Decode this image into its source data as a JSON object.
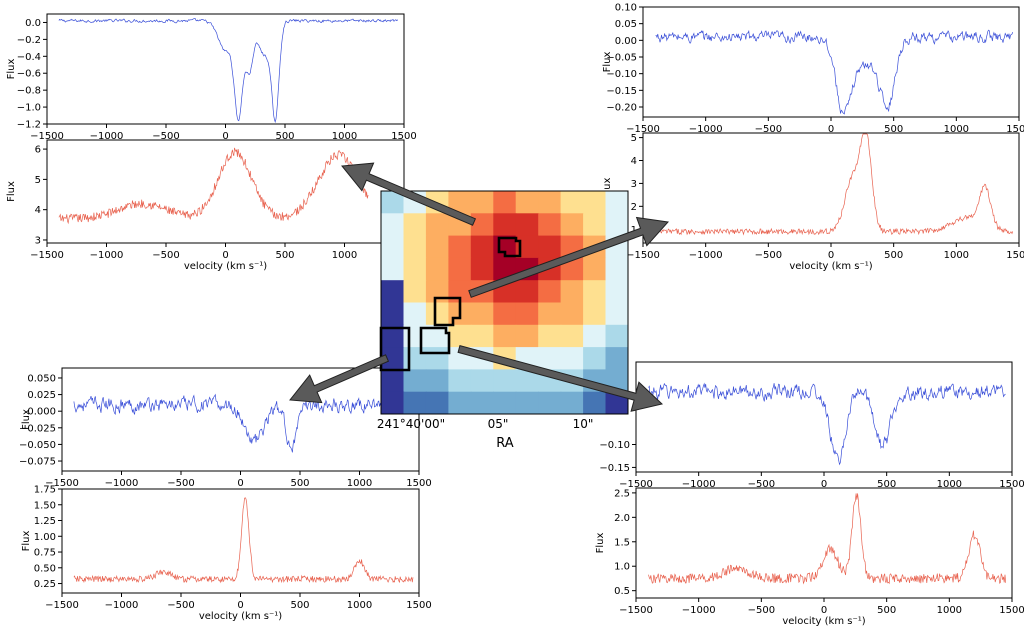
{
  "colors": {
    "absorption": "#3a4fd8",
    "emission": "#e8624f",
    "arrow": "#5a5a5a",
    "box": "#000000"
  },
  "map": {
    "xlabel": "RA",
    "ticks": [
      "241°40'00\"",
      "05\"",
      "10\""
    ]
  },
  "chart_data": [
    {
      "id": "tl-top",
      "type": "line",
      "xlabel": "",
      "ylabel": "Flux",
      "xlim": [
        -1500,
        1500
      ],
      "ylim": [
        -1.2,
        0.1
      ],
      "xticks": [
        -1500,
        -1000,
        -500,
        0,
        500,
        1000,
        1500
      ],
      "yticks": [
        -1.2,
        -1.0,
        -0.8,
        -0.6,
        -0.4,
        -0.2,
        0.0
      ],
      "ytickfmt": 1,
      "color": "absorption",
      "x_range": [
        -1400,
        1450
      ],
      "features": {
        "baseline": 0.02,
        "noise": 0.02,
        "dips": [
          {
            "x": 0,
            "d": 0.35,
            "w": 60
          },
          {
            "x": 110,
            "d": 1.1,
            "w": 35
          },
          {
            "x": 200,
            "d": 0.55,
            "w": 30
          },
          {
            "x": 420,
            "d": 1.05,
            "w": 30
          },
          {
            "x": 330,
            "d": 0.4,
            "w": 60
          }
        ]
      }
    },
    {
      "id": "tl-bot",
      "type": "line",
      "xlabel": "velocity (km s⁻¹)",
      "ylabel": "Flux",
      "xlim": [
        -1500,
        1500
      ],
      "ylim": [
        2.9,
        6.3
      ],
      "xticks": [
        -1500,
        -1000,
        -500,
        0,
        500,
        1000,
        1500
      ],
      "yticks": [
        3,
        4,
        5,
        6
      ],
      "ytickfmt": 0,
      "color": "emission",
      "x_range": [
        -1400,
        1200
      ],
      "features": {
        "baseline": 3.7,
        "noise": 0.15,
        "peaks": [
          {
            "x": 80,
            "h": 2.2,
            "w": 140
          },
          {
            "x": 950,
            "h": 2.1,
            "w": 170
          },
          {
            "x": -700,
            "h": 0.5,
            "w": 200
          }
        ]
      }
    },
    {
      "id": "tr-top",
      "type": "line",
      "xlabel": "",
      "ylabel": "Flux",
      "xlim": [
        -1500,
        1500
      ],
      "ylim": [
        -0.23,
        0.1
      ],
      "xticks": [
        -1500,
        -1000,
        -500,
        0,
        500,
        1000,
        1500
      ],
      "yticks": [
        -0.2,
        -0.15,
        -0.1,
        -0.05,
        0.0,
        0.05,
        0.1
      ],
      "ytickfmt": 2,
      "color": "absorption",
      "x_range": [
        -1400,
        1450
      ],
      "features": {
        "baseline": 0.01,
        "noise": 0.018,
        "dips": [
          {
            "x": 100,
            "d": 0.22,
            "w": 60
          },
          {
            "x": 450,
            "d": 0.2,
            "w": 60
          },
          {
            "x": 270,
            "d": 0.08,
            "w": 90
          }
        ]
      }
    },
    {
      "id": "tr-bot",
      "type": "line",
      "xlabel": "velocity (km s⁻¹)",
      "ylabel": "Flux",
      "xlim": [
        -1500,
        1500
      ],
      "ylim": [
        0.4,
        5.2
      ],
      "xticks": [
        -1500,
        -1000,
        -500,
        0,
        500,
        1000,
        1500
      ],
      "yticks": [
        1,
        2,
        3,
        4,
        5
      ],
      "ytickfmt": 0,
      "color": "emission",
      "x_range": [
        -1400,
        1450
      ],
      "features": {
        "baseline": 0.9,
        "noise": 0.12,
        "peaks": [
          {
            "x": 280,
            "h": 4.0,
            "w": 45
          },
          {
            "x": 170,
            "h": 2.3,
            "w": 60
          },
          {
            "x": 1230,
            "h": 1.7,
            "w": 45
          },
          {
            "x": 1080,
            "h": 0.6,
            "w": 120
          }
        ]
      }
    },
    {
      "id": "bl-top",
      "type": "line",
      "xlabel": "",
      "ylabel": "Flux",
      "xlim": [
        -1500,
        1500
      ],
      "ylim": [
        -0.09,
        0.065
      ],
      "xticks": [
        -1500,
        -1000,
        -500,
        0,
        500,
        1000,
        1500
      ],
      "yticks": [
        -0.075,
        -0.05,
        -0.025,
        0.0,
        0.025,
        0.05
      ],
      "ytickfmt": 3,
      "color": "absorption",
      "x_range": [
        -1400,
        1450
      ],
      "features": {
        "baseline": 0.01,
        "noise": 0.012,
        "dips": [
          {
            "x": 120,
            "d": 0.055,
            "w": 80
          },
          {
            "x": 430,
            "d": 0.06,
            "w": 50
          }
        ]
      }
    },
    {
      "id": "bl-bot",
      "type": "line",
      "xlabel": "velocity (km s⁻¹)",
      "ylabel": "Flux",
      "xlim": [
        -1500,
        1500
      ],
      "ylim": [
        0.1,
        1.75
      ],
      "xticks": [
        -1500,
        -1000,
        -500,
        0,
        500,
        1000,
        1500
      ],
      "yticks": [
        0.25,
        0.5,
        0.75,
        1.0,
        1.25,
        1.5,
        1.75
      ],
      "ytickfmt": 2,
      "color": "emission",
      "x_range": [
        -1400,
        1450
      ],
      "features": {
        "baseline": 0.32,
        "noise": 0.05,
        "peaks": [
          {
            "x": 40,
            "h": 1.3,
            "w": 30
          },
          {
            "x": 1000,
            "h": 0.3,
            "w": 40
          },
          {
            "x": -650,
            "h": 0.12,
            "w": 60
          }
        ]
      }
    },
    {
      "id": "br-top",
      "type": "line",
      "xlabel": "",
      "ylabel": "",
      "xlim": [
        -1500,
        1500
      ],
      "ylim": [
        -0.16,
        0.08
      ],
      "xticks": [
        -1500,
        -1000,
        -500,
        0,
        500,
        1000,
        1500
      ],
      "yticks": [
        -0.15,
        -0.1
      ],
      "ytickfmt": 2,
      "color": "absorption",
      "x_range": [
        -1400,
        1450
      ],
      "features": {
        "baseline": 0.015,
        "noise": 0.018,
        "dips": [
          {
            "x": 110,
            "d": 0.15,
            "w": 60
          },
          {
            "x": 470,
            "d": 0.12,
            "w": 60
          }
        ]
      }
    },
    {
      "id": "br-bot",
      "type": "line",
      "xlabel": "velocity (km s⁻¹)",
      "ylabel": "Flux",
      "xlim": [
        -1500,
        1500
      ],
      "ylim": [
        0.35,
        2.6
      ],
      "xticks": [
        -1500,
        -1000,
        -500,
        0,
        500,
        1000,
        1500
      ],
      "yticks": [
        0.5,
        1.0,
        1.5,
        2.0,
        2.5
      ],
      "ytickfmt": 1,
      "color": "emission",
      "x_range": [
        -1400,
        1450
      ],
      "features": {
        "baseline": 0.75,
        "noise": 0.1,
        "peaks": [
          {
            "x": 260,
            "h": 1.7,
            "w": 35
          },
          {
            "x": 50,
            "h": 0.6,
            "w": 60
          },
          {
            "x": 1200,
            "h": 0.9,
            "w": 45
          },
          {
            "x": -700,
            "h": 0.2,
            "w": 100
          }
        ]
      }
    }
  ]
}
